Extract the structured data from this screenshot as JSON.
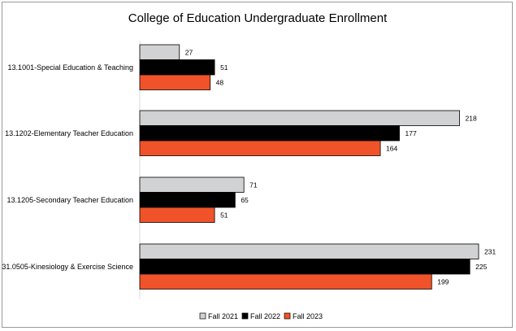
{
  "chart_data": {
    "type": "bar",
    "orientation": "horizontal",
    "title": "College of Education Undergraduate Enrollment",
    "xlabel": "",
    "ylabel": "",
    "xlim": [
      0,
      240
    ],
    "grid": false,
    "legend_position": "bottom",
    "categories": [
      "13.1001-Special Education & Teaching",
      "13.1202-Elementary Teacher Education",
      "13.1205-Secondary Teacher Education",
      "31.0505-Kinesiology & Exercise Science"
    ],
    "series": [
      {
        "name": "Fall 2021",
        "color": "#d0d2d3",
        "values": [
          27,
          218,
          71,
          231
        ]
      },
      {
        "name": "Fall 2022",
        "color": "#000000",
        "values": [
          51,
          177,
          65,
          225
        ]
      },
      {
        "name": "Fall 2023",
        "color": "#f0532a",
        "values": [
          48,
          164,
          51,
          199
        ]
      }
    ]
  }
}
